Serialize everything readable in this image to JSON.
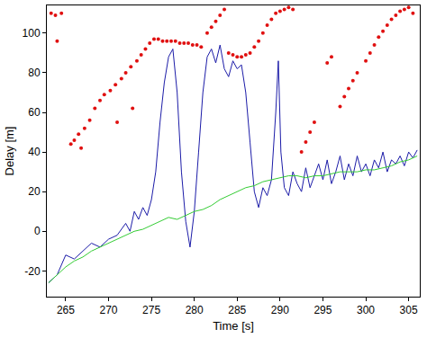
{
  "chart_data": {
    "type": "line",
    "x_label": "Time [s]",
    "y_label": "Delay [m]",
    "xlim": [
      262.8,
      306.3
    ],
    "ylim": [
      -33,
      114
    ],
    "xticks": [
      265,
      270,
      275,
      280,
      285,
      290,
      295,
      300,
      305
    ],
    "yticks": [
      -20,
      0,
      20,
      40,
      60,
      80,
      100
    ],
    "grid": false,
    "series": [
      {
        "type": "scatter",
        "color": "#e01010",
        "marker": "dot",
        "x": [
          263.3,
          263.8,
          264.5,
          265.6,
          266.0,
          266.5,
          267.2,
          267.8,
          268.4,
          269.0,
          269.5,
          270.2,
          270.8,
          271.5,
          272.0,
          272.6,
          271.0,
          272.8,
          273.3,
          273.8,
          274.3,
          274.8,
          275.3,
          275.8,
          276.3,
          276.8,
          277.3,
          277.8,
          278.3,
          278.8,
          279.3,
          279.8,
          280.3,
          280.8,
          281.5,
          282.0,
          282.5,
          283.0,
          283.5,
          284.0,
          284.5,
          285.0,
          285.5,
          286.0,
          286.5,
          287.0,
          287.5,
          288.0,
          288.5,
          289.0,
          289.5,
          290.0,
          290.5,
          291.0,
          291.5,
          292.5,
          293.0,
          293.5,
          294.0,
          295.5,
          296.0,
          297.0,
          297.5,
          298.0,
          298.5,
          299.0,
          300.0,
          300.5,
          301.0,
          301.5,
          302.0,
          302.5,
          303.0,
          303.5,
          304.0,
          304.5,
          305.0,
          305.5,
          264.0,
          266.8
        ],
        "values": [
          110,
          109,
          110,
          44,
          46,
          49,
          52,
          56,
          62,
          66,
          69,
          71,
          74,
          77,
          80,
          83,
          55,
          62,
          86,
          89,
          92,
          95,
          97,
          97,
          96,
          96,
          96,
          96,
          95,
          95,
          95,
          94,
          94,
          93,
          100,
          103,
          106,
          109,
          112,
          90,
          89,
          88,
          88,
          89,
          90,
          93,
          96,
          100,
          104,
          107,
          110,
          111,
          112,
          113,
          112,
          40,
          45,
          50,
          55,
          85,
          88,
          63,
          68,
          72,
          76,
          80,
          86,
          90,
          94,
          98,
          101,
          104,
          107,
          109,
          111,
          112,
          113,
          110,
          96,
          42
        ]
      },
      {
        "type": "line",
        "color": "#1c1ca8",
        "x": [
          263.0,
          264.0,
          265.0,
          266.0,
          267.0,
          268.0,
          269.0,
          270.0,
          271.0,
          272.0,
          272.5,
          273.0,
          273.5,
          274.0,
          274.5,
          275.0,
          275.5,
          276.0,
          276.5,
          277.0,
          277.5,
          278.0,
          278.5,
          279.0,
          279.5,
          280.0,
          280.5,
          281.0,
          281.5,
          282.0,
          282.5,
          283.0,
          283.5,
          284.0,
          284.5,
          285.0,
          285.5,
          286.0,
          286.5,
          287.0,
          287.5,
          288.0,
          288.5,
          289.0,
          289.5,
          289.8,
          290.1,
          290.5,
          291.0,
          291.5,
          292.0,
          292.5,
          293.0,
          293.5,
          294.0,
          294.5,
          295.0,
          295.5,
          296.0,
          296.5,
          297.0,
          297.5,
          298.0,
          298.5,
          299.0,
          299.5,
          300.0,
          300.5,
          301.0,
          301.5,
          302.0,
          302.5,
          303.0,
          303.5,
          304.0,
          304.5,
          305.0,
          305.5,
          306.0
        ],
        "values": [
          -26,
          -22,
          -12,
          -14,
          -10,
          -6,
          -8,
          -4,
          -2,
          4,
          0,
          10,
          6,
          12,
          8,
          16,
          30,
          55,
          75,
          88,
          92,
          70,
          30,
          5,
          -8,
          10,
          40,
          70,
          88,
          92,
          85,
          94,
          82,
          78,
          86,
          82,
          84,
          70,
          45,
          20,
          12,
          22,
          18,
          26,
          60,
          86,
          40,
          22,
          18,
          30,
          24,
          20,
          32,
          22,
          28,
          34,
          26,
          36,
          24,
          30,
          38,
          26,
          34,
          28,
          38,
          30,
          34,
          28,
          36,
          32,
          40,
          30,
          36,
          34,
          38,
          33,
          40,
          37,
          41
        ]
      },
      {
        "type": "line",
        "color": "#33cc33",
        "x": [
          263.0,
          264.0,
          265.0,
          266.0,
          267.0,
          268.0,
          269.0,
          270.0,
          271.0,
          272.0,
          273.0,
          274.0,
          275.0,
          276.0,
          277.0,
          278.0,
          279.0,
          280.0,
          281.0,
          282.0,
          283.0,
          284.0,
          285.0,
          286.0,
          287.0,
          288.0,
          289.0,
          290.0,
          291.0,
          292.0,
          293.0,
          294.0,
          295.0,
          296.0,
          297.0,
          298.0,
          299.0,
          300.0,
          301.0,
          302.0,
          303.0,
          304.0,
          305.0,
          306.0
        ],
        "values": [
          -26,
          -22,
          -18,
          -15,
          -13,
          -10,
          -8,
          -6,
          -4,
          -2,
          0,
          1,
          3,
          5,
          7,
          6,
          8,
          10,
          11,
          13,
          16,
          18,
          20,
          22,
          23,
          25,
          26,
          27,
          28,
          28,
          27,
          28,
          28,
          29,
          30,
          30,
          30,
          31,
          31,
          32,
          33,
          35,
          36,
          38
        ]
      }
    ]
  }
}
